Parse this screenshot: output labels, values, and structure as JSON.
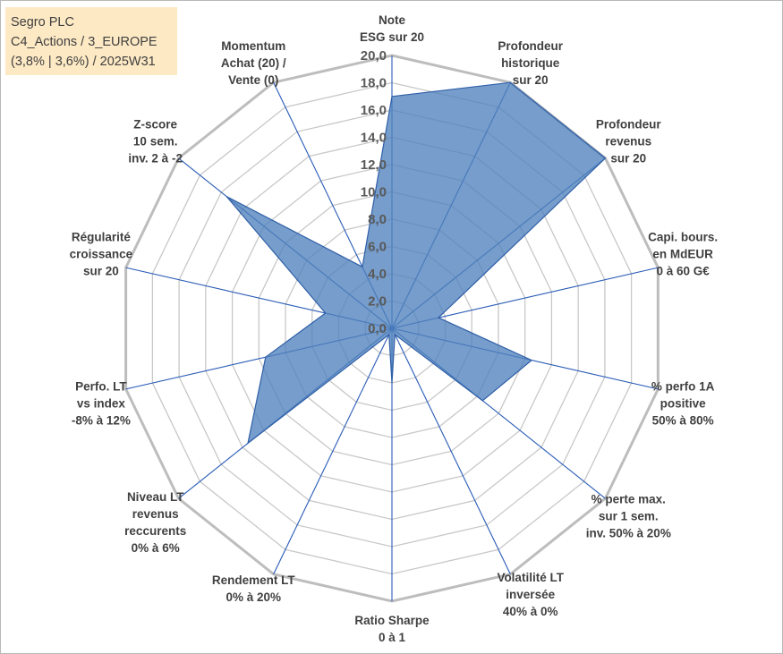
{
  "info": {
    "line1": "Segro PLC",
    "line2": "C4_Actions / 3_EUROPE",
    "line3": "(3,8% | 3,6%) / 2025W31"
  },
  "colors": {
    "fill": "#4f81bd",
    "stroke": "#2f5fa7",
    "grid": "#c8c8c8",
    "spoke": "#2e5fb8",
    "info_bg": "#fde9c4"
  },
  "chart_data": {
    "type": "radar",
    "rlim": [
      0,
      20
    ],
    "grid": true,
    "tick_values": [
      0,
      2,
      4,
      6,
      8,
      10,
      12,
      14,
      16,
      18,
      20
    ],
    "tick_labels": [
      "0,0",
      "2,0",
      "4,0",
      "6,0",
      "8,0",
      "10,0",
      "12,0",
      "14,0",
      "16,0",
      "18,0",
      "20,0"
    ],
    "axes": [
      {
        "lines": [
          "Note",
          "ESG sur 20"
        ]
      },
      {
        "lines": [
          "Profondeur",
          "historique",
          "sur 20"
        ]
      },
      {
        "lines": [
          "Profondeur",
          "revenus",
          "sur 20"
        ]
      },
      {
        "lines": [
          "Capi. bours.",
          "en MdEUR",
          "0 à 60 G€"
        ]
      },
      {
        "lines": [
          "% perfo 1A",
          "positive",
          "50% à 80%"
        ]
      },
      {
        "lines": [
          "% perte max.",
          "sur 1 sem.",
          "inv. 50% à 20%"
        ]
      },
      {
        "lines": [
          "Volatilité LT",
          "inversée",
          "40% à 0%"
        ]
      },
      {
        "lines": [
          "Ratio Sharpe",
          "0 à 1"
        ]
      },
      {
        "lines": [
          "Rendement LT",
          "0% à 20%"
        ]
      },
      {
        "lines": [
          "Niveau LT",
          "revenus",
          "reccurents",
          "0% à 6%"
        ]
      },
      {
        "lines": [
          "Perfo. LT",
          "vs index",
          "-8% à 12%"
        ]
      },
      {
        "lines": [
          "Régularité",
          "croissance",
          "sur 20"
        ]
      },
      {
        "lines": [
          "Z-score",
          "10 sem.",
          "inv. 2 à -2"
        ]
      },
      {
        "lines": [
          "Momentum",
          "Achat (20) /",
          "Vente (0)"
        ]
      }
    ],
    "values": [
      17.0,
      20.0,
      20.0,
      3.5,
      10.5,
      8.5,
      0.5,
      4.0,
      0.5,
      13.5,
      9.5,
      5.0,
      15.5,
      5.0
    ]
  }
}
